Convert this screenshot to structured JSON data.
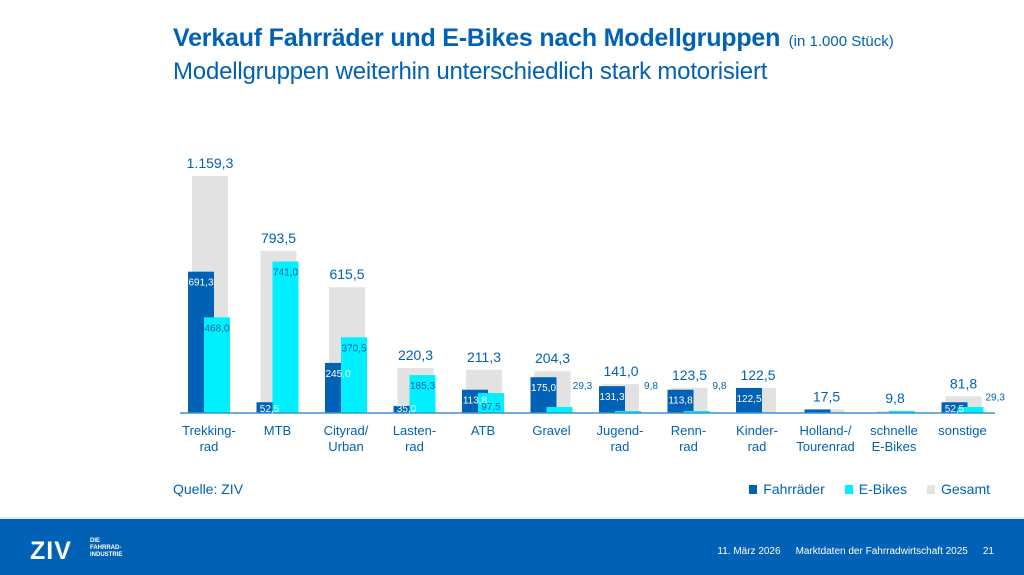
{
  "header": {
    "title": "Verkauf Fahrräder und E-Bikes nach Modellgruppen",
    "unit": "(in 1.000 Stück)",
    "subtitle": "Modellgruppen weiterhin unterschiedlich stark motorisiert"
  },
  "source": "Quelle: ZIV",
  "colors": {
    "fahrraeder": "#0061b5",
    "ebikes": "#00f0ff",
    "gesamt": "#e2e2e2",
    "text": "#0061b5",
    "footer": "#0061b5"
  },
  "chart_data": {
    "type": "bar",
    "title": "Verkauf Fahrräder und E-Bikes nach Modellgruppen (in 1.000 Stück)",
    "xlabel": "",
    "ylabel": "",
    "ylim": [
      0,
      1159.3
    ],
    "grid": false,
    "legend": "bottom-right",
    "categories": [
      [
        "Trekking-",
        "rad"
      ],
      [
        "MTB"
      ],
      [
        "Cityrad/",
        "Urban"
      ],
      [
        "Lasten-",
        "rad"
      ],
      [
        "ATB"
      ],
      [
        "Gravel"
      ],
      [
        "Jugend-",
        "rad"
      ],
      [
        "Renn-",
        "rad"
      ],
      [
        "Kinder-",
        "rad"
      ],
      [
        "Holland-/",
        "Tourenrad"
      ],
      [
        "schnelle",
        "E-Bikes"
      ],
      [
        "sonstige"
      ]
    ],
    "series": [
      {
        "name": "Fahrräder",
        "values": [
          691.3,
          52.5,
          245.0,
          35.0,
          113.8,
          175.0,
          131.3,
          113.8,
          122.5,
          17.5,
          0,
          52.5
        ],
        "labels": [
          "691,3",
          "52,5",
          "245,0",
          "35,0",
          "113,8",
          "175,0",
          "131,3",
          "113,8",
          "122,5",
          "",
          "",
          "52,5"
        ]
      },
      {
        "name": "E-Bikes",
        "values": [
          468.0,
          741.0,
          370.5,
          185.3,
          97.5,
          29.3,
          9.8,
          9.8,
          0,
          0,
          9.8,
          29.3
        ],
        "labels": [
          "468,0",
          "741,0",
          "370,5",
          "185,3",
          "97,5",
          "29,3",
          "9,8",
          "9,8",
          "",
          "",
          "",
          "29,3"
        ]
      },
      {
        "name": "Gesamt",
        "values": [
          1159.3,
          793.5,
          615.5,
          220.3,
          211.3,
          204.3,
          141.0,
          123.5,
          122.5,
          17.5,
          9.8,
          81.8
        ],
        "labels": [
          "1.159,3",
          "793,5",
          "615,5",
          "220,3",
          "211,3",
          "204,3",
          "141,0",
          "123,5",
          "122,5",
          "17,5",
          "9,8",
          "81,8"
        ]
      }
    ]
  },
  "legend": {
    "items": [
      {
        "label": "Fahrräder"
      },
      {
        "label": "E-Bikes"
      },
      {
        "label": "Gesamt"
      }
    ]
  },
  "footer": {
    "logo": "ZIV",
    "logo_sub": [
      "DIE",
      "FAHRRAD-",
      "INDUSTRIE"
    ],
    "date": "11. März 2026",
    "doc_title": "Marktdaten der Fahrradwirtschaft 2025",
    "page": "21"
  }
}
